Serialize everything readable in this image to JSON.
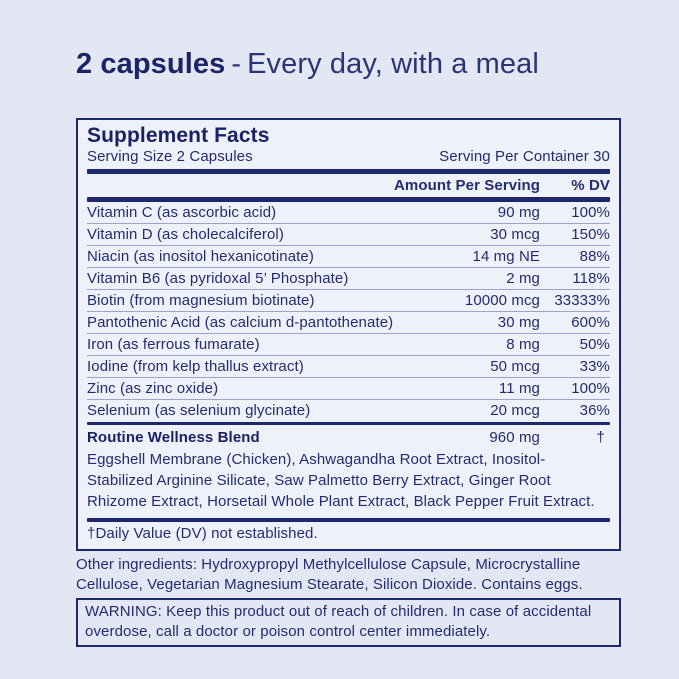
{
  "page": {
    "background_color": "#e3e7f4",
    "panel_background_color": "#eef1f9",
    "accent_color": "#1d276b"
  },
  "header": {
    "dosage": "2 capsules",
    "separator": "-",
    "instruction": "Every day, with a meal"
  },
  "panel": {
    "title": "Supplement Facts",
    "serving_size": "Serving Size 2 Capsules",
    "servings_per_container": "Serving Per Container 30",
    "columns": {
      "amount": "Amount Per Serving",
      "dv": "% DV"
    },
    "nutrients": [
      {
        "name": "Vitamin C (as ascorbic acid)",
        "amount": "90 mg",
        "dv": "100%"
      },
      {
        "name": "Vitamin D (as cholecalciferol)",
        "amount": "30 mcg",
        "dv": "150%"
      },
      {
        "name": "Niacin (as inositol hexanicotinate)",
        "amount": "14 mg NE",
        "dv": "88%"
      },
      {
        "name": "Vitamin B6 (as pyridoxal 5’ Phosphate)",
        "amount": "2 mg",
        "dv": "118%"
      },
      {
        "name": "Biotin (from magnesium biotinate)",
        "amount": "10000 mcg",
        "dv": "33333%"
      },
      {
        "name": "Pantothenic Acid (as calcium d-pantothenate)",
        "amount": "30 mg",
        "dv": "600%"
      },
      {
        "name": "Iron (as ferrous fumarate)",
        "amount": "8 mg",
        "dv": "50%"
      },
      {
        "name": "Iodine (from kelp thallus extract)",
        "amount": "50 mcg",
        "dv": "33%"
      },
      {
        "name": "Zinc (as zinc oxide)",
        "amount": "11 mg",
        "dv": "100%"
      },
      {
        "name": "Selenium (as selenium glycinate)",
        "amount": "20 mcg",
        "dv": "36%"
      }
    ],
    "blend": {
      "name": "Routine Wellness Blend",
      "amount": "960 mg",
      "dv": "†",
      "ingredients": "Eggshell Membrane (Chicken), Ashwagandha Root Extract, Inositol-Stabilized Arginine Silicate, Saw Palmetto Berry Extract, Ginger Root Rhizome Extract, Horsetail Whole Plant Extract, Black Pepper Fruit Extract."
    },
    "footnote": "†Daily Value (DV) not established."
  },
  "other_ingredients": "Other ingredients: Hydroxypropyl Methylcellulose Capsule, Microcrystalline Cellulose, Vegetarian Magnesium Stearate, Silicon Dioxide. Contains eggs.",
  "warning": {
    "text": "WARNING: Keep this product out of reach of children. In case of accidental overdose, call a doctor or poison control center immediately."
  }
}
